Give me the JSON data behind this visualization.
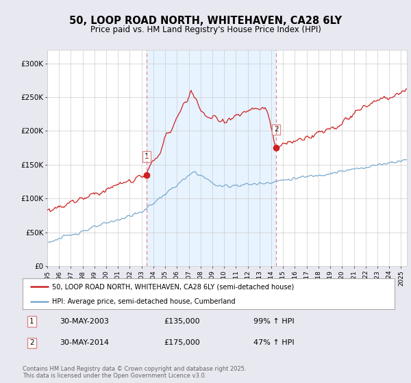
{
  "title": "50, LOOP ROAD NORTH, WHITEHAVEN, CA28 6LY",
  "subtitle": "Price paid vs. HM Land Registry's House Price Index (HPI)",
  "ylim": [
    0,
    320000
  ],
  "yticks": [
    0,
    50000,
    100000,
    150000,
    200000,
    250000,
    300000
  ],
  "ytick_labels": [
    "£0",
    "£50K",
    "£100K",
    "£150K",
    "£200K",
    "£250K",
    "£300K"
  ],
  "xlim_start": 1995.0,
  "xlim_end": 2025.5,
  "xticks": [
    1995,
    1996,
    1997,
    1998,
    1999,
    2000,
    2001,
    2002,
    2003,
    2004,
    2005,
    2006,
    2007,
    2008,
    2009,
    2010,
    2011,
    2012,
    2013,
    2014,
    2015,
    2016,
    2017,
    2018,
    2019,
    2020,
    2021,
    2022,
    2023,
    2024,
    2025
  ],
  "marker1_x": 2003.41,
  "marker1_y": 135000,
  "marker2_x": 2014.41,
  "marker2_y": 175000,
  "marker1_label": "1",
  "marker2_label": "2",
  "marker1_date": "30-MAY-2003",
  "marker1_price": "£135,000",
  "marker1_hpi": "99% ↑ HPI",
  "marker2_date": "30-MAY-2014",
  "marker2_price": "£175,000",
  "marker2_hpi": "47% ↑ HPI",
  "red_color": "#cc2222",
  "blue_color": "#7aaacc",
  "vline_color": "#dd8888",
  "shade_color": "#ddeeff",
  "background_color": "#e8e8f0",
  "plot_bg_color": "#ffffff",
  "legend1_label": "50, LOOP ROAD NORTH, WHITEHAVEN, CA28 6LY (semi-detached house)",
  "legend2_label": "HPI: Average price, semi-detached house, Cumberland",
  "footer": "Contains HM Land Registry data © Crown copyright and database right 2025.\nThis data is licensed under the Open Government Licence v3.0.",
  "title_fontsize": 10.5,
  "subtitle_fontsize": 8.5
}
